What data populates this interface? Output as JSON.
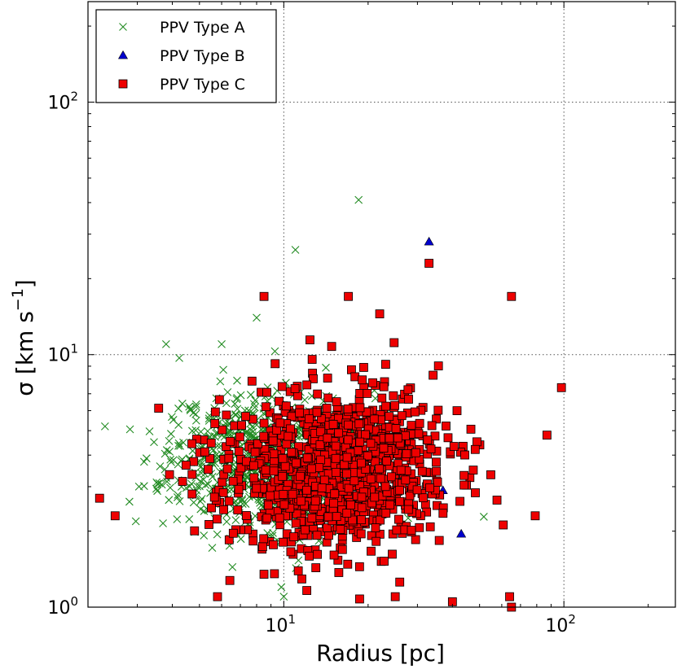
{
  "chart_data": {
    "type": "scatter",
    "xscale": "log",
    "yscale": "log",
    "xlim": [
      2,
      250
    ],
    "ylim": [
      1,
      250
    ],
    "xlabel": "Radius  [pc]",
    "ylabel": "σ  [km  s",
    "ylabel_sup": "−1",
    "ylabel_close": "]",
    "grid": true,
    "legend_location": "top-left",
    "x_ticks": [
      {
        "value": 10,
        "base": "10",
        "exp": "1"
      },
      {
        "value": 100,
        "base": "10",
        "exp": "2"
      }
    ],
    "y_ticks": [
      {
        "value": 1,
        "base": "10",
        "exp": "0"
      },
      {
        "value": 10,
        "base": "10",
        "exp": "1"
      },
      {
        "value": 100,
        "base": "10",
        "exp": "2"
      }
    ],
    "series": [
      {
        "name": "PPV Type A",
        "marker": "x",
        "color": "#228B22",
        "count": 820,
        "seed": 11,
        "logx_mean": 0.93,
        "logx_sd": 0.17,
        "logy_mean": 0.58,
        "logy_sd": 0.14,
        "notable_points": [
          [
            18.5,
            41
          ],
          [
            11.0,
            26
          ],
          [
            8.0,
            14
          ],
          [
            6.0,
            11
          ],
          [
            3.8,
            11
          ],
          [
            2.3,
            5.2
          ],
          [
            9.8,
            1.2
          ],
          [
            10.0,
            1.1
          ]
        ]
      },
      {
        "name": "PPV Type B",
        "marker": "triangle",
        "color": "#0000CD",
        "count": 0,
        "seed": 5,
        "notable_points": [
          [
            33.0,
            28
          ],
          [
            37.0,
            2.9
          ],
          [
            34.0,
            2.8
          ],
          [
            43.0,
            1.95
          ]
        ]
      },
      {
        "name": "PPV Type C",
        "marker": "square",
        "color": "#EE0000",
        "count": 1050,
        "seed": 23,
        "logx_mean": 1.18,
        "logx_sd": 0.2,
        "logy_mean": 0.54,
        "logy_sd": 0.16,
        "notable_points": [
          [
            33.0,
            23
          ],
          [
            8.5,
            17
          ],
          [
            17.0,
            17
          ],
          [
            65.0,
            17
          ],
          [
            22.0,
            14.5
          ],
          [
            98.0,
            7.4
          ],
          [
            87.0,
            4.8
          ],
          [
            79.0,
            2.3
          ],
          [
            2.2,
            2.7
          ],
          [
            2.5,
            2.3
          ],
          [
            5.8,
            1.1
          ],
          [
            25.0,
            1.1
          ],
          [
            65.0,
            1.0
          ],
          [
            64.0,
            1.1
          ],
          [
            40.0,
            1.05
          ],
          [
            8.5,
            1.35
          ]
        ]
      }
    ]
  }
}
